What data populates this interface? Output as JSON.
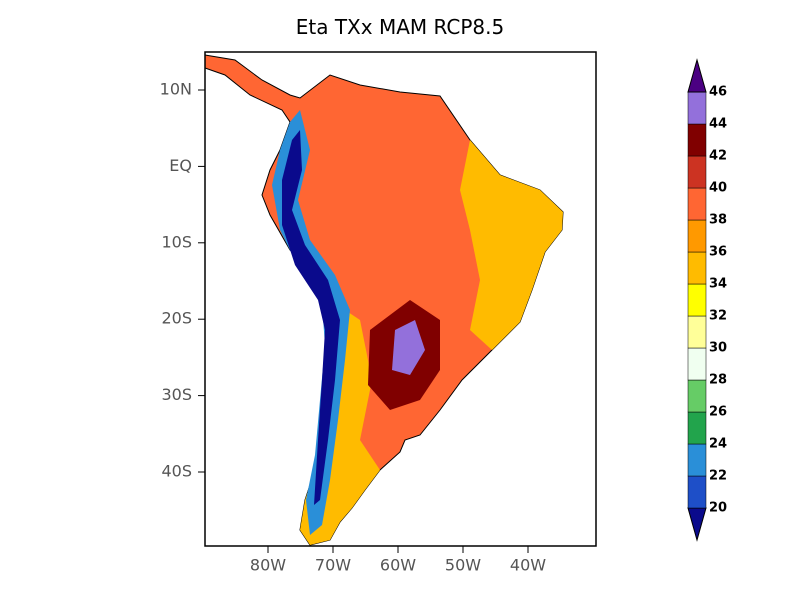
{
  "map": {
    "title": "Eta TXx MAM RCP8.5",
    "lat_labels": [
      "10N",
      "EQ",
      "10S",
      "20S",
      "30S",
      "40S"
    ],
    "lon_labels": [
      "80W",
      "70W",
      "60W",
      "50W",
      "40W"
    ],
    "colorbar": {
      "levels": [
        20,
        22,
        24,
        26,
        28,
        30,
        32,
        34,
        36,
        38,
        40,
        42,
        44,
        46
      ],
      "colors": [
        "#0a0a8c",
        "#1e4fc8",
        "#2a8fd8",
        "#22a44c",
        "#66cc66",
        "#f0fff0",
        "#ffff99",
        "#ffff00",
        "#ffbb00",
        "#ff9900",
        "#ff6633",
        "#cc3322",
        "#800000",
        "#9370db",
        "#4b0082"
      ]
    }
  }
}
